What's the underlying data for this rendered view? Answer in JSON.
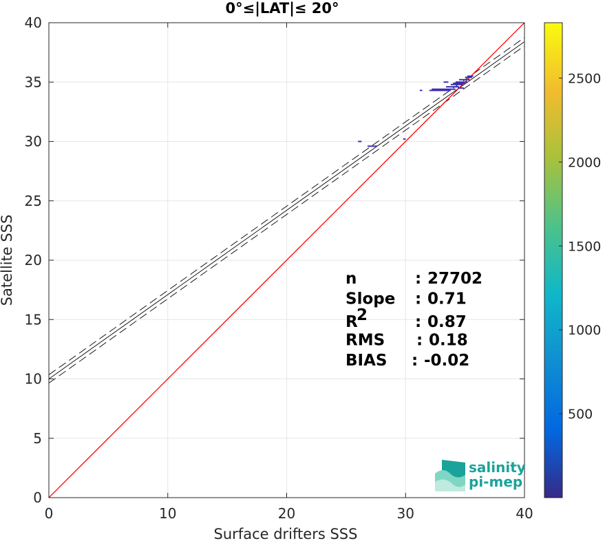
{
  "chart_data": {
    "type": "scatter",
    "title": "0°≤|LAT|≤ 20°",
    "xlabel": "Surface drifters SSS",
    "ylabel": "Satellite SSS",
    "xlim": [
      0,
      40
    ],
    "ylim": [
      0,
      40
    ],
    "xticks": [
      "0",
      "10",
      "20",
      "30",
      "40"
    ],
    "yticks": [
      "0",
      "5",
      "10",
      "15",
      "20",
      "25",
      "30",
      "35",
      "40"
    ],
    "grid": true,
    "colorbar": {
      "range": [
        0,
        2830
      ],
      "ticks": [
        "500",
        "1000",
        "1500",
        "2000",
        "2500"
      ],
      "tick_values": [
        500,
        1000,
        1500,
        2000,
        2500
      ],
      "colormap": [
        "#352a87",
        "#0268e1",
        "#108ed2",
        "#0fb7c9",
        "#4dc28a",
        "#a9c13c",
        "#f2bc2e",
        "#f9fb0e"
      ]
    },
    "identity_line": {
      "color": "#ff0000",
      "from": [
        0,
        0
      ],
      "to": [
        40,
        40
      ]
    },
    "fit_line": {
      "slope": 0.71,
      "intercept": 10.0,
      "band": 0.35,
      "color": "#000000"
    },
    "density_segments": [
      {
        "x0": 26.0,
        "x1": 26.3,
        "y": 30.0
      },
      {
        "x0": 26.8,
        "x1": 27.6,
        "y": 29.6
      },
      {
        "x0": 29.8,
        "x1": 30.0,
        "y": 30.2
      },
      {
        "x0": 31.2,
        "x1": 31.4,
        "y": 34.3
      },
      {
        "x0": 32.0,
        "x1": 33.8,
        "y": 34.3
      },
      {
        "x0": 32.2,
        "x1": 34.2,
        "y": 34.4
      },
      {
        "x0": 33.4,
        "x1": 34.5,
        "y": 34.6
      },
      {
        "x0": 33.8,
        "x1": 34.8,
        "y": 34.8
      },
      {
        "x0": 34.0,
        "x1": 35.0,
        "y": 34.9
      },
      {
        "x0": 34.2,
        "x1": 35.2,
        "y": 35.0
      },
      {
        "x0": 33.2,
        "x1": 33.6,
        "y": 35.0
      },
      {
        "x0": 34.5,
        "x1": 35.4,
        "y": 35.2
      },
      {
        "x0": 35.0,
        "x1": 35.6,
        "y": 35.4
      },
      {
        "x0": 35.2,
        "x1": 35.7,
        "y": 35.5
      },
      {
        "x0": 34.4,
        "x1": 34.9,
        "y": 34.5
      }
    ],
    "stats": [
      {
        "label": "n",
        "sep": ": ",
        "value": "27702"
      },
      {
        "label": "Slope",
        "sep": ": ",
        "value": "0.71"
      },
      {
        "label": "R",
        "sup": "2",
        "sep": ": ",
        "value": "0.87"
      },
      {
        "label": "RMS",
        "sep": ": ",
        "value": "0.18"
      },
      {
        "label": "BIAS",
        "sep": ": ",
        "value": "-0.02"
      }
    ]
  },
  "logo": {
    "line1": "salinity",
    "line2": "pi-mep",
    "colors": [
      "#1aa39a",
      "#7fd6c4",
      "#bfeadf"
    ]
  }
}
